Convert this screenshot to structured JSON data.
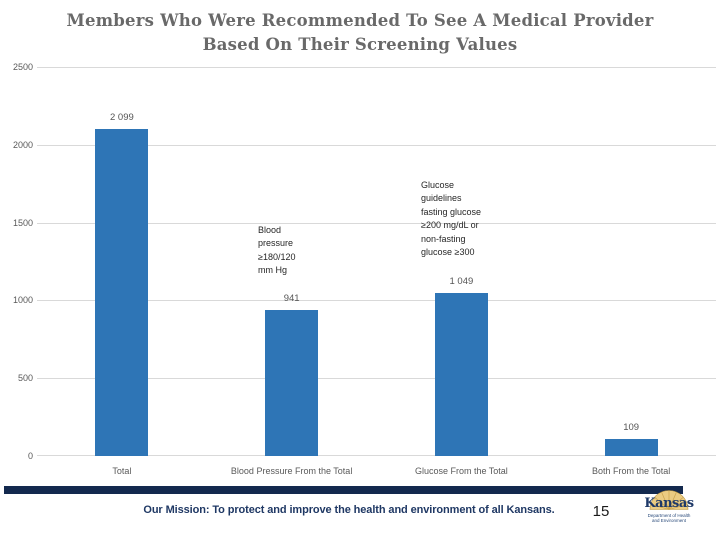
{
  "slide": {
    "title": "Members Who Were Recommended To See A Medical Provider\nBased On Their Screening Values",
    "mission_text": "Our Mission: To protect and improve the health and environment of all Kansans.",
    "page_number": "15",
    "logo": {
      "main_text": "Kansas",
      "sub_text": "Department of Health\nand Environment"
    }
  },
  "chart_data": {
    "type": "bar",
    "title": "Members Who Were Recommended To See A Medical Provider Based On Their Screening Values",
    "categories": [
      "Total",
      "Blood Pressure From the Total",
      "Glucose From the Total",
      "Both From the Total"
    ],
    "values": [
      2099,
      941,
      1049,
      109
    ],
    "value_labels": [
      "2 099",
      "941",
      "1 049",
      "109"
    ],
    "xlabel": "",
    "ylabel": "",
    "ylim": [
      0,
      2500
    ],
    "yticks": [
      2500,
      2000,
      1500,
      1000,
      500,
      0
    ],
    "grid": "horizontal",
    "legend": "none",
    "annotations": [
      {
        "target": "Blood Pressure From the Total",
        "text": "Blood\npressure\n≥180/120\nmm Hg"
      },
      {
        "target": "Glucose From the Total",
        "text": "Glucose\nguidelines\nfasting glucose\n≥200 mg/dL or\nnon-fasting\nglucose ≥300"
      }
    ]
  },
  "colors": {
    "bar": "#2E75B6",
    "gridline": "#D9D9D9",
    "axis_text": "#595959",
    "title_text": "#696969",
    "annotation_text": "#262626",
    "footer_bar": "#13294E",
    "mission_text": "#1F3864",
    "logo_gold": "#EBCC82",
    "logo_navy": "#1E3968"
  }
}
